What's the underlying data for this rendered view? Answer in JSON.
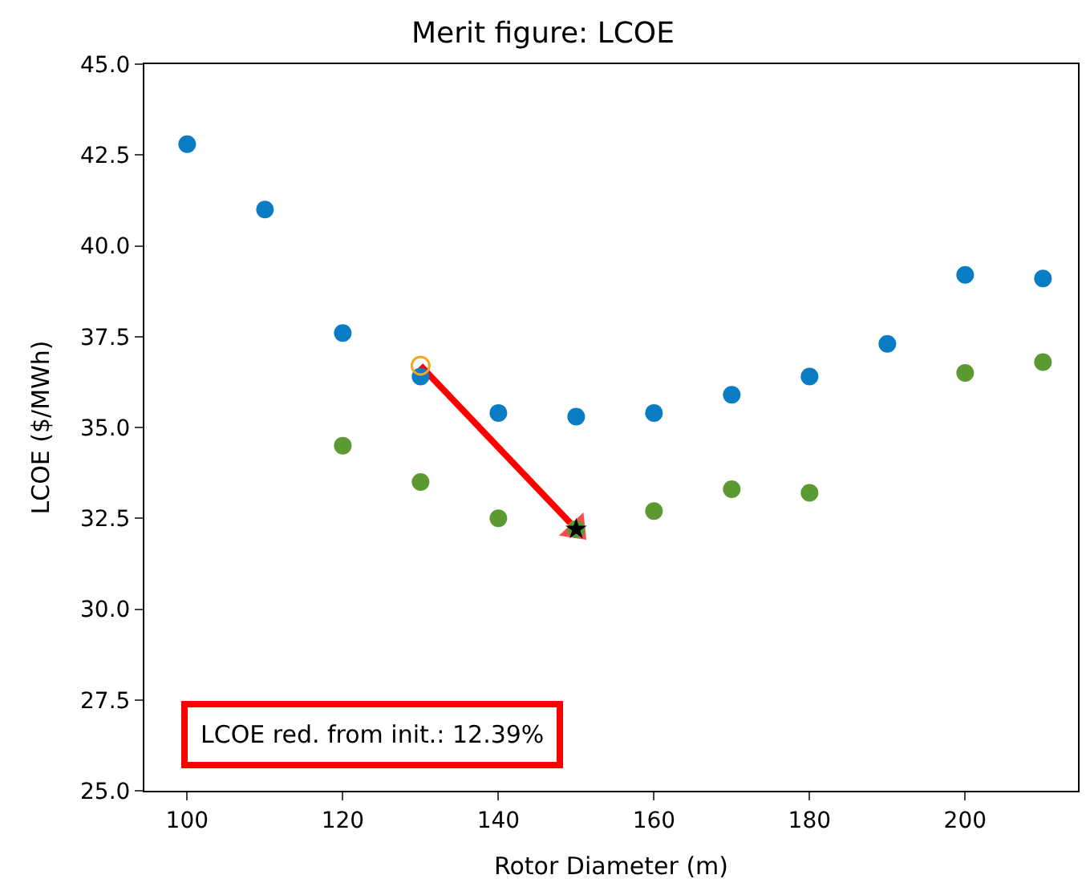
{
  "chart_data": {
    "type": "scatter",
    "title": "Merit figure: LCOE",
    "xlabel": "Rotor Diameter (m)",
    "ylabel": "LCOE ($/MWh)",
    "xlim": [
      94.5,
      214.5
    ],
    "ylim": [
      25,
      45
    ],
    "xticks": [
      100,
      120,
      140,
      160,
      180,
      200
    ],
    "yticks": [
      {
        "value": 25,
        "label": "25.0"
      },
      {
        "value": 27.5,
        "label": "27.5"
      },
      {
        "value": 30,
        "label": "30.0"
      },
      {
        "value": 32.5,
        "label": "32.5"
      },
      {
        "value": 35,
        "label": "35.0"
      },
      {
        "value": 37.5,
        "label": "37.5"
      },
      {
        "value": 40,
        "label": "40.0"
      },
      {
        "value": 42.5,
        "label": "42.5"
      },
      {
        "value": 45,
        "label": "45.0"
      }
    ],
    "series": [
      {
        "color": "#0a7cc4",
        "marker": "circle",
        "x": [
          100,
          110,
          120,
          130,
          140,
          150,
          160,
          170,
          180,
          190,
          200,
          210
        ],
        "values": [
          42.8,
          41.0,
          37.6,
          36.4,
          35.4,
          35.3,
          35.4,
          35.9,
          36.4,
          37.3,
          39.2,
          39.1
        ]
      },
      {
        "color": "#5b9a30",
        "marker": "circle",
        "x": [
          120,
          130,
          140,
          150,
          160,
          170,
          180,
          200,
          210
        ],
        "values": [
          34.5,
          33.5,
          32.5,
          32.2,
          32.7,
          33.3,
          33.2,
          36.5,
          36.8
        ]
      },
      {
        "type": "line",
        "color": "#ff0000",
        "marker": "triangle",
        "x": [
          130,
          150
        ],
        "values": [
          36.7,
          32.2
        ]
      },
      {
        "color": "#f5a623",
        "marker": "circle-open",
        "x": [
          130
        ],
        "values": [
          36.7
        ]
      },
      {
        "color": "#000000",
        "marker": "star",
        "x": [
          150
        ],
        "values": [
          32.2
        ]
      }
    ],
    "annotations": [
      "LCOE red. from init.: 12.39%"
    ]
  }
}
